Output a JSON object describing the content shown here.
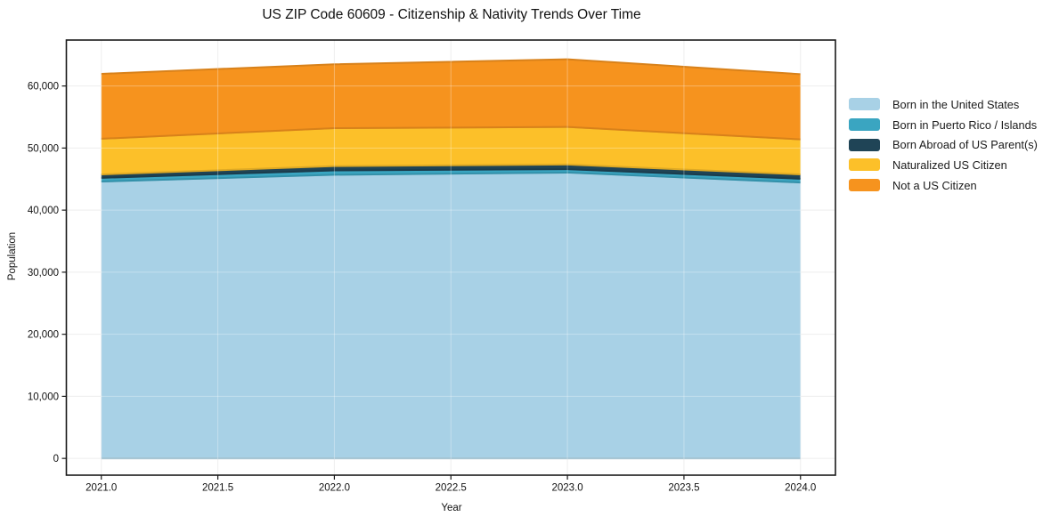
{
  "chart_data": {
    "type": "area",
    "stacked": true,
    "title": "US ZIP Code 60609 - Citizenship & Nativity Trends Over Time",
    "xlabel": "Year",
    "ylabel": "Population",
    "x": [
      2021,
      2022,
      2023,
      2024
    ],
    "series": [
      {
        "name": "Born in the United States",
        "color": "#A8D1E6",
        "values": [
          44600,
          45700,
          46050,
          44450
        ]
      },
      {
        "name": "Born in Puerto Rico / Islands",
        "color": "#3AA5C1",
        "values": [
          600,
          700,
          550,
          600
        ]
      },
      {
        "name": "Born Abroad of US Parent(s)",
        "color": "#1F4456",
        "values": [
          550,
          700,
          750,
          700
        ]
      },
      {
        "name": "Naturalized US Citizen",
        "color": "#FCC029",
        "values": [
          5750,
          6100,
          6050,
          5650
        ]
      },
      {
        "name": "Not a US Citizen",
        "color": "#F6931E",
        "values": [
          10450,
          10300,
          10900,
          10500
        ]
      }
    ],
    "xticks": [
      2021.0,
      2021.5,
      2022.0,
      2022.5,
      2023.0,
      2023.5,
      2024.0
    ],
    "xtick_labels": [
      "2021.0",
      "2021.5",
      "2022.0",
      "2022.5",
      "2023.0",
      "2023.5",
      "2024.0"
    ],
    "yticks": [
      0,
      10000,
      20000,
      30000,
      40000,
      50000,
      60000
    ],
    "ytick_labels": [
      "0",
      "10,000",
      "20,000",
      "30,000",
      "40,000",
      "50,000",
      "60,000"
    ],
    "xlim": [
      2020.85,
      2024.15
    ],
    "ylim": [
      -2700,
      67400
    ],
    "grid": true,
    "legend_position": "right",
    "spine_color": "#1a1a1a",
    "grid_color": "#e7e7e7"
  }
}
